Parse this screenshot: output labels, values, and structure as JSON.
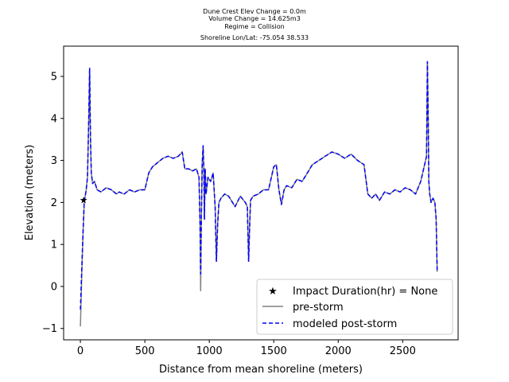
{
  "chart_data": {
    "type": "line",
    "title_lines": [
      "Dune Crest Elev Change = 0.0m",
      "Volume Change = 14.625m3",
      "Regime = Collision",
      "Shoreline Lon/Lat: -75.054 38.533"
    ],
    "xlabel": "Distance from mean shoreline (meters)",
    "ylabel": "Elevation (meters)",
    "xlim": [
      -130,
      2930
    ],
    "ylim": [
      -1.27,
      5.72
    ],
    "xticks": [
      0,
      500,
      1000,
      1500,
      2000,
      2500
    ],
    "xtick_labels": [
      "0",
      "500",
      "1000",
      "1500",
      "2000",
      "2500"
    ],
    "yticks": [
      -1,
      0,
      1,
      2,
      3,
      4,
      5
    ],
    "ytick_labels": [
      "−1",
      "0",
      "1",
      "2",
      "3",
      "4",
      "5"
    ],
    "grid": false,
    "legend_position": "lower-right",
    "impact_point": {
      "name": "Impact Duration(hr) = None",
      "x": 25,
      "y": 2.05,
      "color": "#ff0000"
    },
    "series": [
      {
        "name": "pre-storm",
        "color": "#808080",
        "style": "solid",
        "x": [
          0,
          10,
          20,
          30,
          45,
          55,
          65,
          72,
          78,
          85,
          95,
          110,
          130,
          160,
          200,
          240,
          280,
          300,
          340,
          380,
          420,
          460,
          500,
          530,
          560,
          600,
          640,
          680,
          720,
          760,
          790,
          810,
          840,
          870,
          900,
          920,
          928,
          933,
          938,
          945,
          952,
          958,
          962,
          968,
          975,
          990,
          1010,
          1030,
          1045,
          1055,
          1065,
          1075,
          1090,
          1120,
          1150,
          1200,
          1240,
          1280,
          1295,
          1305,
          1312,
          1320,
          1340,
          1380,
          1420,
          1460,
          1500,
          1520,
          1540,
          1560,
          1580,
          1600,
          1640,
          1680,
          1720,
          1760,
          1800,
          1850,
          1900,
          1950,
          2000,
          2050,
          2100,
          2150,
          2200,
          2230,
          2260,
          2290,
          2320,
          2360,
          2400,
          2440,
          2480,
          2520,
          2560,
          2600,
          2640,
          2670,
          2685,
          2692,
          2698,
          2703,
          2710,
          2720,
          2735,
          2750,
          2760,
          2768
        ],
        "y": [
          -0.95,
          0.2,
          1.2,
          2.0,
          2.3,
          2.6,
          4.0,
          5.2,
          3.6,
          2.7,
          2.45,
          2.5,
          2.3,
          2.25,
          2.35,
          2.3,
          2.2,
          2.25,
          2.2,
          2.3,
          2.25,
          2.3,
          2.3,
          2.7,
          2.85,
          2.95,
          3.05,
          3.1,
          3.05,
          3.1,
          3.2,
          2.8,
          2.8,
          2.75,
          2.8,
          2.6,
          1.5,
          -0.1,
          1.5,
          2.9,
          3.35,
          2.7,
          1.6,
          2.8,
          2.2,
          2.6,
          2.5,
          2.7,
          1.9,
          0.6,
          1.5,
          2.0,
          2.1,
          2.2,
          2.15,
          1.9,
          2.15,
          2.0,
          1.9,
          0.6,
          1.3,
          2.05,
          2.15,
          2.2,
          2.3,
          2.3,
          2.85,
          2.9,
          2.3,
          1.95,
          2.3,
          2.4,
          2.35,
          2.55,
          2.5,
          2.7,
          2.9,
          3.0,
          3.1,
          3.2,
          3.15,
          3.05,
          3.15,
          3.0,
          2.9,
          2.2,
          2.1,
          2.2,
          2.05,
          2.25,
          2.2,
          2.3,
          2.25,
          2.35,
          2.3,
          2.2,
          2.5,
          2.9,
          3.1,
          5.35,
          4.0,
          2.5,
          2.2,
          2.0,
          2.1,
          2.0,
          1.6,
          0.35
        ]
      },
      {
        "name": "modeled post-storm",
        "color": "#0000ff",
        "style": "dashed",
        "x": [
          0,
          10,
          20,
          30,
          45,
          55,
          65,
          72,
          78,
          85,
          95,
          110,
          130,
          160,
          200,
          240,
          280,
          300,
          340,
          380,
          420,
          460,
          500,
          530,
          560,
          600,
          640,
          680,
          720,
          760,
          790,
          810,
          840,
          870,
          900,
          920,
          928,
          933,
          938,
          945,
          952,
          958,
          962,
          968,
          975,
          990,
          1010,
          1030,
          1045,
          1055,
          1065,
          1075,
          1090,
          1120,
          1150,
          1200,
          1240,
          1280,
          1295,
          1305,
          1312,
          1320,
          1340,
          1380,
          1420,
          1460,
          1500,
          1520,
          1540,
          1560,
          1580,
          1600,
          1640,
          1680,
          1720,
          1760,
          1800,
          1850,
          1900,
          1950,
          2000,
          2050,
          2100,
          2150,
          2200,
          2230,
          2260,
          2290,
          2320,
          2360,
          2400,
          2440,
          2480,
          2520,
          2560,
          2600,
          2640,
          2670,
          2685,
          2692,
          2698,
          2703,
          2710,
          2720,
          2735,
          2750,
          2760,
          2768
        ],
        "y": [
          -0.55,
          0.35,
          1.25,
          2.0,
          2.3,
          2.6,
          4.0,
          5.2,
          3.6,
          2.7,
          2.45,
          2.5,
          2.3,
          2.25,
          2.35,
          2.3,
          2.2,
          2.25,
          2.2,
          2.3,
          2.25,
          2.3,
          2.3,
          2.7,
          2.85,
          2.95,
          3.05,
          3.1,
          3.05,
          3.1,
          3.2,
          2.8,
          2.8,
          2.75,
          2.8,
          2.6,
          1.5,
          0.3,
          1.5,
          2.9,
          3.35,
          2.7,
          1.6,
          2.8,
          2.2,
          2.6,
          2.5,
          2.7,
          1.9,
          0.6,
          1.5,
          2.0,
          2.1,
          2.2,
          2.15,
          1.9,
          2.15,
          2.0,
          1.9,
          0.6,
          1.3,
          2.05,
          2.15,
          2.2,
          2.3,
          2.3,
          2.85,
          2.9,
          2.3,
          1.95,
          2.3,
          2.4,
          2.35,
          2.55,
          2.5,
          2.7,
          2.9,
          3.0,
          3.1,
          3.2,
          3.15,
          3.05,
          3.15,
          3.0,
          2.9,
          2.2,
          2.1,
          2.2,
          2.05,
          2.25,
          2.2,
          2.3,
          2.25,
          2.35,
          2.3,
          2.2,
          2.5,
          2.9,
          3.1,
          5.35,
          4.0,
          2.5,
          2.2,
          2.0,
          2.1,
          2.0,
          1.6,
          0.35
        ]
      }
    ]
  }
}
